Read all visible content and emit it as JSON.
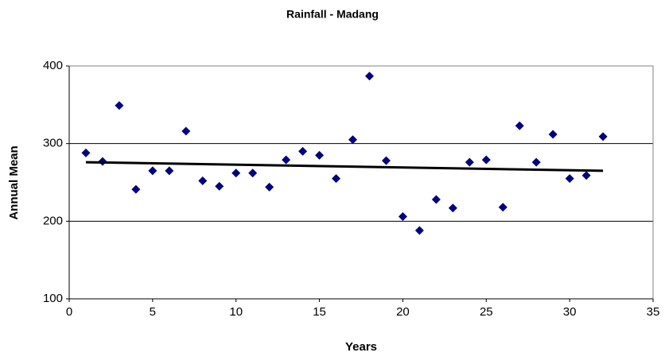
{
  "chart_data": {
    "type": "scatter",
    "title": "Rainfall - Madang",
    "xlabel": "Years",
    "ylabel": "Annual Mean",
    "x": [
      1,
      2,
      3,
      4,
      5,
      6,
      7,
      8,
      9,
      10,
      11,
      12,
      13,
      14,
      15,
      16,
      17,
      18,
      19,
      20,
      21,
      22,
      23,
      24,
      25,
      26,
      27,
      28,
      29,
      30,
      31,
      32
    ],
    "series": [
      {
        "color": "#000080",
        "values": [
          288,
          277,
          349,
          241,
          265,
          265,
          316,
          252,
          245,
          262,
          262,
          244,
          279,
          290,
          285,
          255,
          305,
          387,
          278,
          206,
          188,
          228,
          217,
          276,
          279,
          218,
          323,
          276,
          312,
          255,
          259,
          309
        ]
      }
    ],
    "trendline": {
      "color": "#000000",
      "x": [
        1,
        32
      ],
      "values": [
        276,
        265
      ]
    },
    "xlim": [
      0,
      35
    ],
    "xticks": [
      0,
      5,
      10,
      15,
      20,
      25,
      30,
      35
    ],
    "ylim": [
      100,
      400
    ],
    "yticks": [
      100,
      200,
      300,
      400
    ],
    "grid": true
  }
}
